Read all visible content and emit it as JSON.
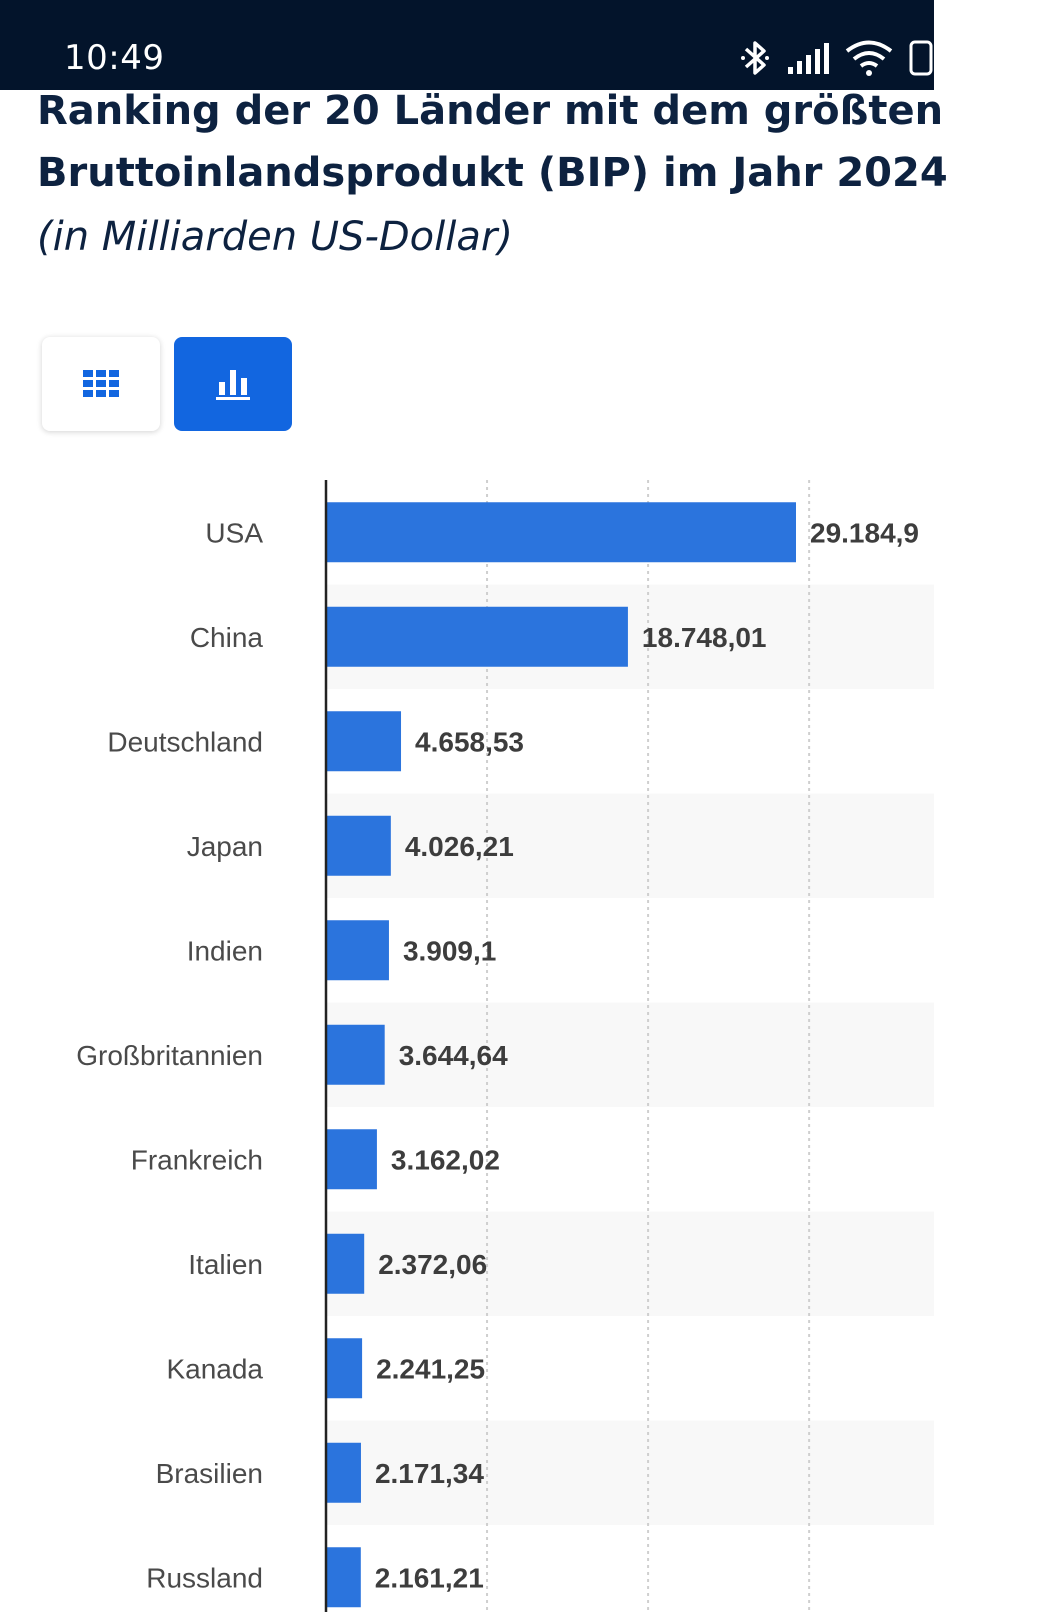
{
  "status_bar": {
    "time": "10:49",
    "icons": [
      "bluetooth-icon",
      "signal-icon",
      "wifi-icon",
      "battery-icon"
    ]
  },
  "title_line1": "Ranking der 20 Länder mit dem größten",
  "title_line2": "Bruttoinlandsprodukt (BIP) im Jahr 2024",
  "subtitle": "(in Milliarden US-Dollar)",
  "view_toggle": {
    "options": [
      "table-view",
      "chart-view"
    ],
    "selected": "chart-view"
  },
  "colors": {
    "bar": "#2b74dd",
    "accent": "#1266e0",
    "status_bar": "#03142b",
    "title": "#0d2240"
  },
  "chart_data": {
    "type": "bar",
    "orientation": "horizontal",
    "title": "Ranking der 20 Länder mit dem größten Bruttoinlandsprodukt (BIP) im Jahr 2024",
    "unit": "Milliarden US-Dollar",
    "categories": [
      "USA",
      "China",
      "Deutschland",
      "Japan",
      "Indien",
      "Großbritannien",
      "Frankreich",
      "Italien",
      "Kanada",
      "Brasilien",
      "Russland"
    ],
    "values": [
      29184.9,
      18748.01,
      4658.53,
      4026.21,
      3909.1,
      3644.64,
      3162.02,
      2372.06,
      2241.25,
      2171.34,
      2161.21
    ],
    "value_labels": [
      "29.184,9",
      "18.748,01",
      "4.658,53",
      "4.026,21",
      "3.909,1",
      "3.644,64",
      "3.162,02",
      "2.372,06",
      "2.241,25",
      "2.171,34",
      "2.161,21"
    ],
    "gridlines_at": [
      10000,
      20000,
      30000
    ],
    "xlim": [
      0,
      30000
    ],
    "grid": true
  }
}
